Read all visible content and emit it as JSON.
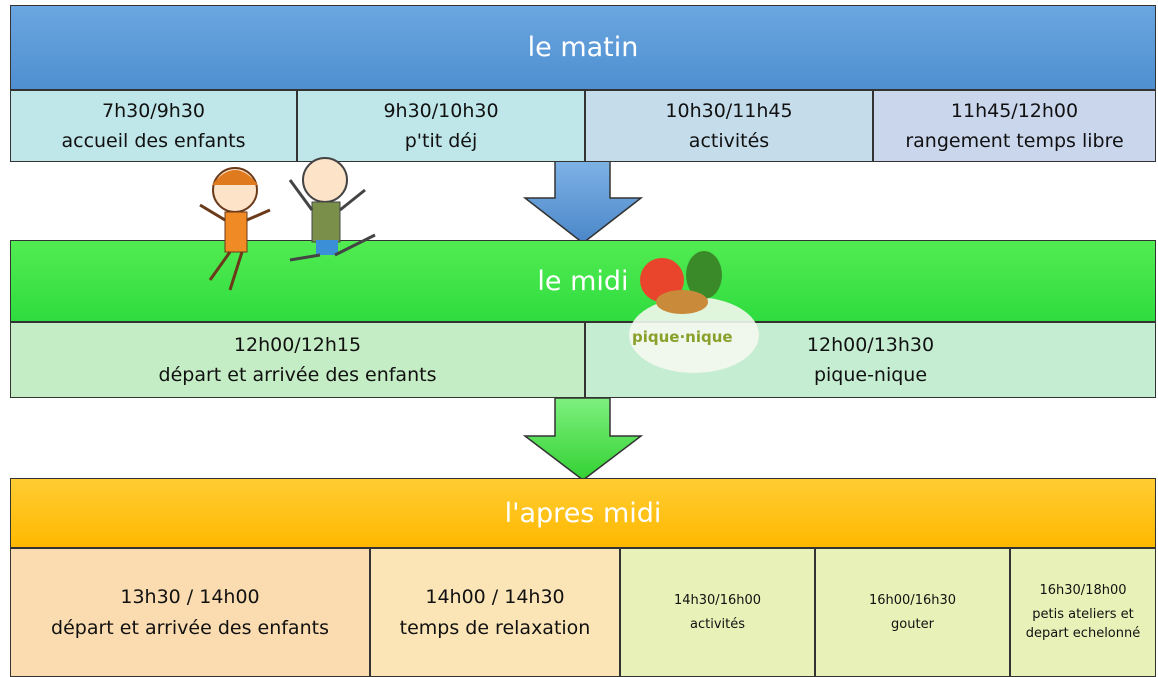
{
  "sections": [
    {
      "title": "le matin",
      "slots": [
        {
          "time": "7h30/9h30",
          "label": "accueil des enfants"
        },
        {
          "time": "9h30/10h30",
          "label": "p'tit déj"
        },
        {
          "time": "10h30/11h45",
          "label": "activités"
        },
        {
          "time": "11h45/12h00",
          "label": "rangement temps libre"
        }
      ]
    },
    {
      "title": "le midi",
      "slots": [
        {
          "time": "12h00/12h15",
          "label": "départ et arrivée des enfants"
        },
        {
          "time": "12h00/13h30",
          "label": "pique-nique"
        }
      ]
    },
    {
      "title": "l'apres midi",
      "slots": [
        {
          "time": "13h30 / 14h00",
          "label": "départ et arrivée des enfants"
        },
        {
          "time": "14h00 / 14h30",
          "label": "temps de relaxation"
        },
        {
          "time": "14h30/16h00",
          "label": "activités"
        },
        {
          "time": "16h00/16h30",
          "label": "gouter"
        },
        {
          "time": "16h30/18h00",
          "label": "petis ateliers et depart echelonné"
        }
      ]
    }
  ],
  "illustration": {
    "label": "pique·nique"
  }
}
